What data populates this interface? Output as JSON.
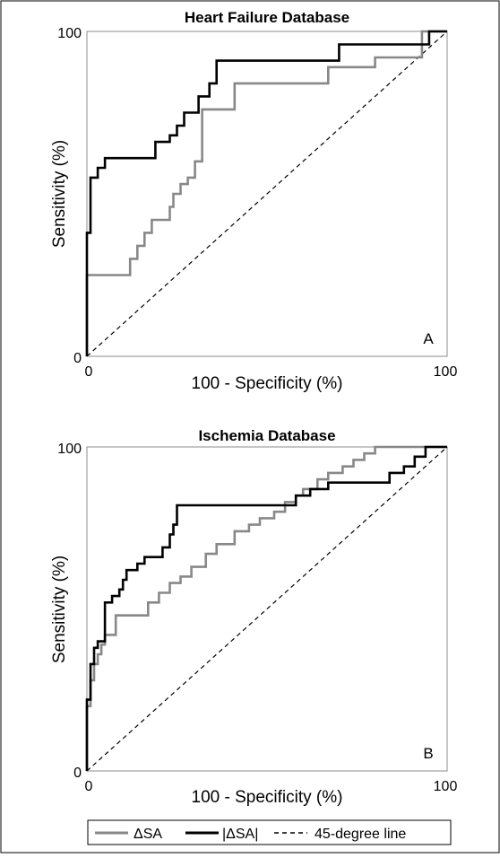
{
  "chart_data": [
    {
      "type": "line",
      "panel": "A",
      "title": "Heart Failure Database",
      "xlabel": "100 - Specificity (%)",
      "ylabel": "Sensitivity (%)",
      "xlim": [
        0,
        100
      ],
      "ylim": [
        0,
        100
      ],
      "x_ticks": [
        "0",
        "100"
      ],
      "y_ticks": [
        "0",
        "100"
      ],
      "grid": false,
      "series": [
        {
          "name": "ΔSA",
          "color": "#888888",
          "x": [
            0,
            0,
            12,
            12,
            14,
            14,
            16,
            16,
            18,
            18,
            23,
            23,
            24,
            24,
            26,
            26,
            28,
            28,
            30,
            30,
            32,
            32,
            41,
            41,
            63,
            63,
            67,
            67,
            80,
            80,
            93,
            93,
            97,
            97,
            100
          ],
          "y": [
            0,
            25,
            25,
            30,
            30,
            34,
            34,
            38,
            38,
            42,
            42,
            46,
            46,
            50,
            50,
            53,
            53,
            55,
            55,
            60,
            60,
            76,
            76,
            84,
            84,
            84,
            84,
            89,
            89,
            92,
            92,
            100,
            100,
            100,
            100
          ]
        },
        {
          "name": "|ΔSA|",
          "color": "#000000",
          "x": [
            0,
            0,
            1,
            1,
            3,
            3,
            5,
            5,
            19,
            19,
            23,
            23,
            25,
            25,
            27,
            27,
            31,
            31,
            34,
            34,
            36,
            36,
            44,
            44,
            70,
            70,
            95,
            95,
            100
          ],
          "y": [
            0,
            38,
            38,
            55,
            55,
            58,
            58,
            61,
            61,
            66,
            66,
            68,
            68,
            71,
            71,
            75,
            75,
            80,
            80,
            84,
            84,
            91,
            91,
            91,
            91,
            96,
            96,
            100,
            100
          ]
        },
        {
          "name": "45-degree line",
          "color": "#000000",
          "dash": true,
          "x": [
            0,
            100
          ],
          "y": [
            0,
            100
          ]
        }
      ],
      "annotations": [
        "A"
      ]
    },
    {
      "type": "line",
      "panel": "B",
      "title": "Ischemia Database",
      "xlabel": "100 - Specificity (%)",
      "ylabel": "Sensitivity (%)",
      "xlim": [
        0,
        100
      ],
      "ylim": [
        0,
        100
      ],
      "x_ticks": [
        "0",
        "100"
      ],
      "y_ticks": [
        "0",
        "100"
      ],
      "grid": false,
      "series": [
        {
          "name": "ΔSA",
          "color": "#888888",
          "x": [
            0,
            0,
            1,
            1,
            2,
            2,
            3,
            3,
            4,
            4,
            5,
            5,
            8,
            8,
            17,
            17,
            20,
            20,
            23,
            23,
            26,
            26,
            29,
            29,
            33,
            33,
            36,
            36,
            41,
            41,
            45,
            45,
            48,
            48,
            52,
            52,
            55,
            55,
            58,
            58,
            60,
            60,
            64,
            64,
            67,
            67,
            71,
            71,
            74,
            74,
            77,
            77,
            80,
            80,
            84,
            84,
            100
          ],
          "y": [
            0,
            20,
            20,
            28,
            28,
            33,
            33,
            36,
            36,
            39,
            39,
            42,
            42,
            48,
            48,
            52,
            52,
            55,
            55,
            58,
            58,
            60,
            60,
            63,
            63,
            67,
            67,
            70,
            70,
            74,
            74,
            76,
            76,
            78,
            78,
            80,
            80,
            83,
            83,
            85,
            85,
            87,
            87,
            90,
            90,
            92,
            92,
            94,
            94,
            96,
            96,
            98,
            98,
            100,
            100,
            100,
            100
          ]
        },
        {
          "name": "|ΔSA|",
          "color": "#000000",
          "x": [
            0,
            0,
            1,
            1,
            2,
            2,
            3,
            3,
            5,
            5,
            7,
            7,
            9,
            9,
            10,
            10,
            11,
            11,
            14,
            14,
            16,
            16,
            21,
            21,
            23,
            23,
            24,
            24,
            25,
            25,
            58,
            58,
            62,
            62,
            67,
            67,
            84,
            84,
            88,
            88,
            91,
            91,
            94,
            94,
            100
          ],
          "y": [
            0,
            22,
            22,
            33,
            33,
            38,
            38,
            40,
            40,
            52,
            52,
            54,
            54,
            56,
            56,
            59,
            59,
            62,
            62,
            64,
            64,
            66,
            66,
            69,
            69,
            73,
            73,
            76,
            76,
            82,
            82,
            85,
            85,
            87,
            87,
            89,
            89,
            92,
            92,
            94,
            94,
            97,
            97,
            100,
            100
          ]
        },
        {
          "name": "45-degree line",
          "color": "#000000",
          "dash": true,
          "x": [
            0,
            100
          ],
          "y": [
            0,
            100
          ]
        }
      ],
      "annotations": [
        "B"
      ]
    }
  ],
  "legend": {
    "placement": "bottom",
    "items": [
      {
        "label": "ΔSA",
        "color": "#888888",
        "dash": false
      },
      {
        "label": "|ΔSA|",
        "color": "#000000",
        "dash": false
      },
      {
        "label": "45-degree line",
        "color": "#000000",
        "dash": true
      }
    ]
  }
}
